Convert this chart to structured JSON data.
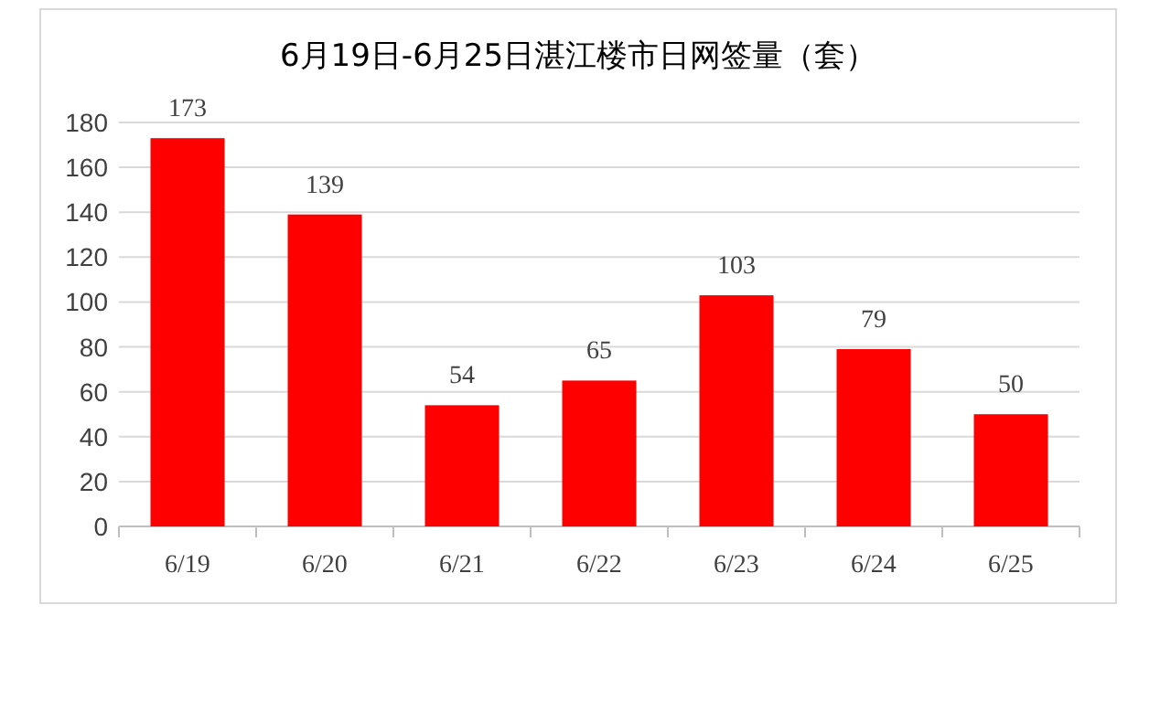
{
  "chart_data": {
    "type": "bar",
    "title": "6月19日-6月25日湛江楼市日网签量（套）",
    "categories": [
      "6/19",
      "6/20",
      "6/21",
      "6/22",
      "6/23",
      "6/24",
      "6/25"
    ],
    "values": [
      173,
      139,
      54,
      65,
      103,
      79,
      50
    ],
    "color": "#ff0000",
    "ylim": [
      0,
      180
    ],
    "yticks": [
      0,
      20,
      40,
      60,
      80,
      100,
      120,
      140,
      160,
      180
    ],
    "grid": "y",
    "data_labels": true
  }
}
